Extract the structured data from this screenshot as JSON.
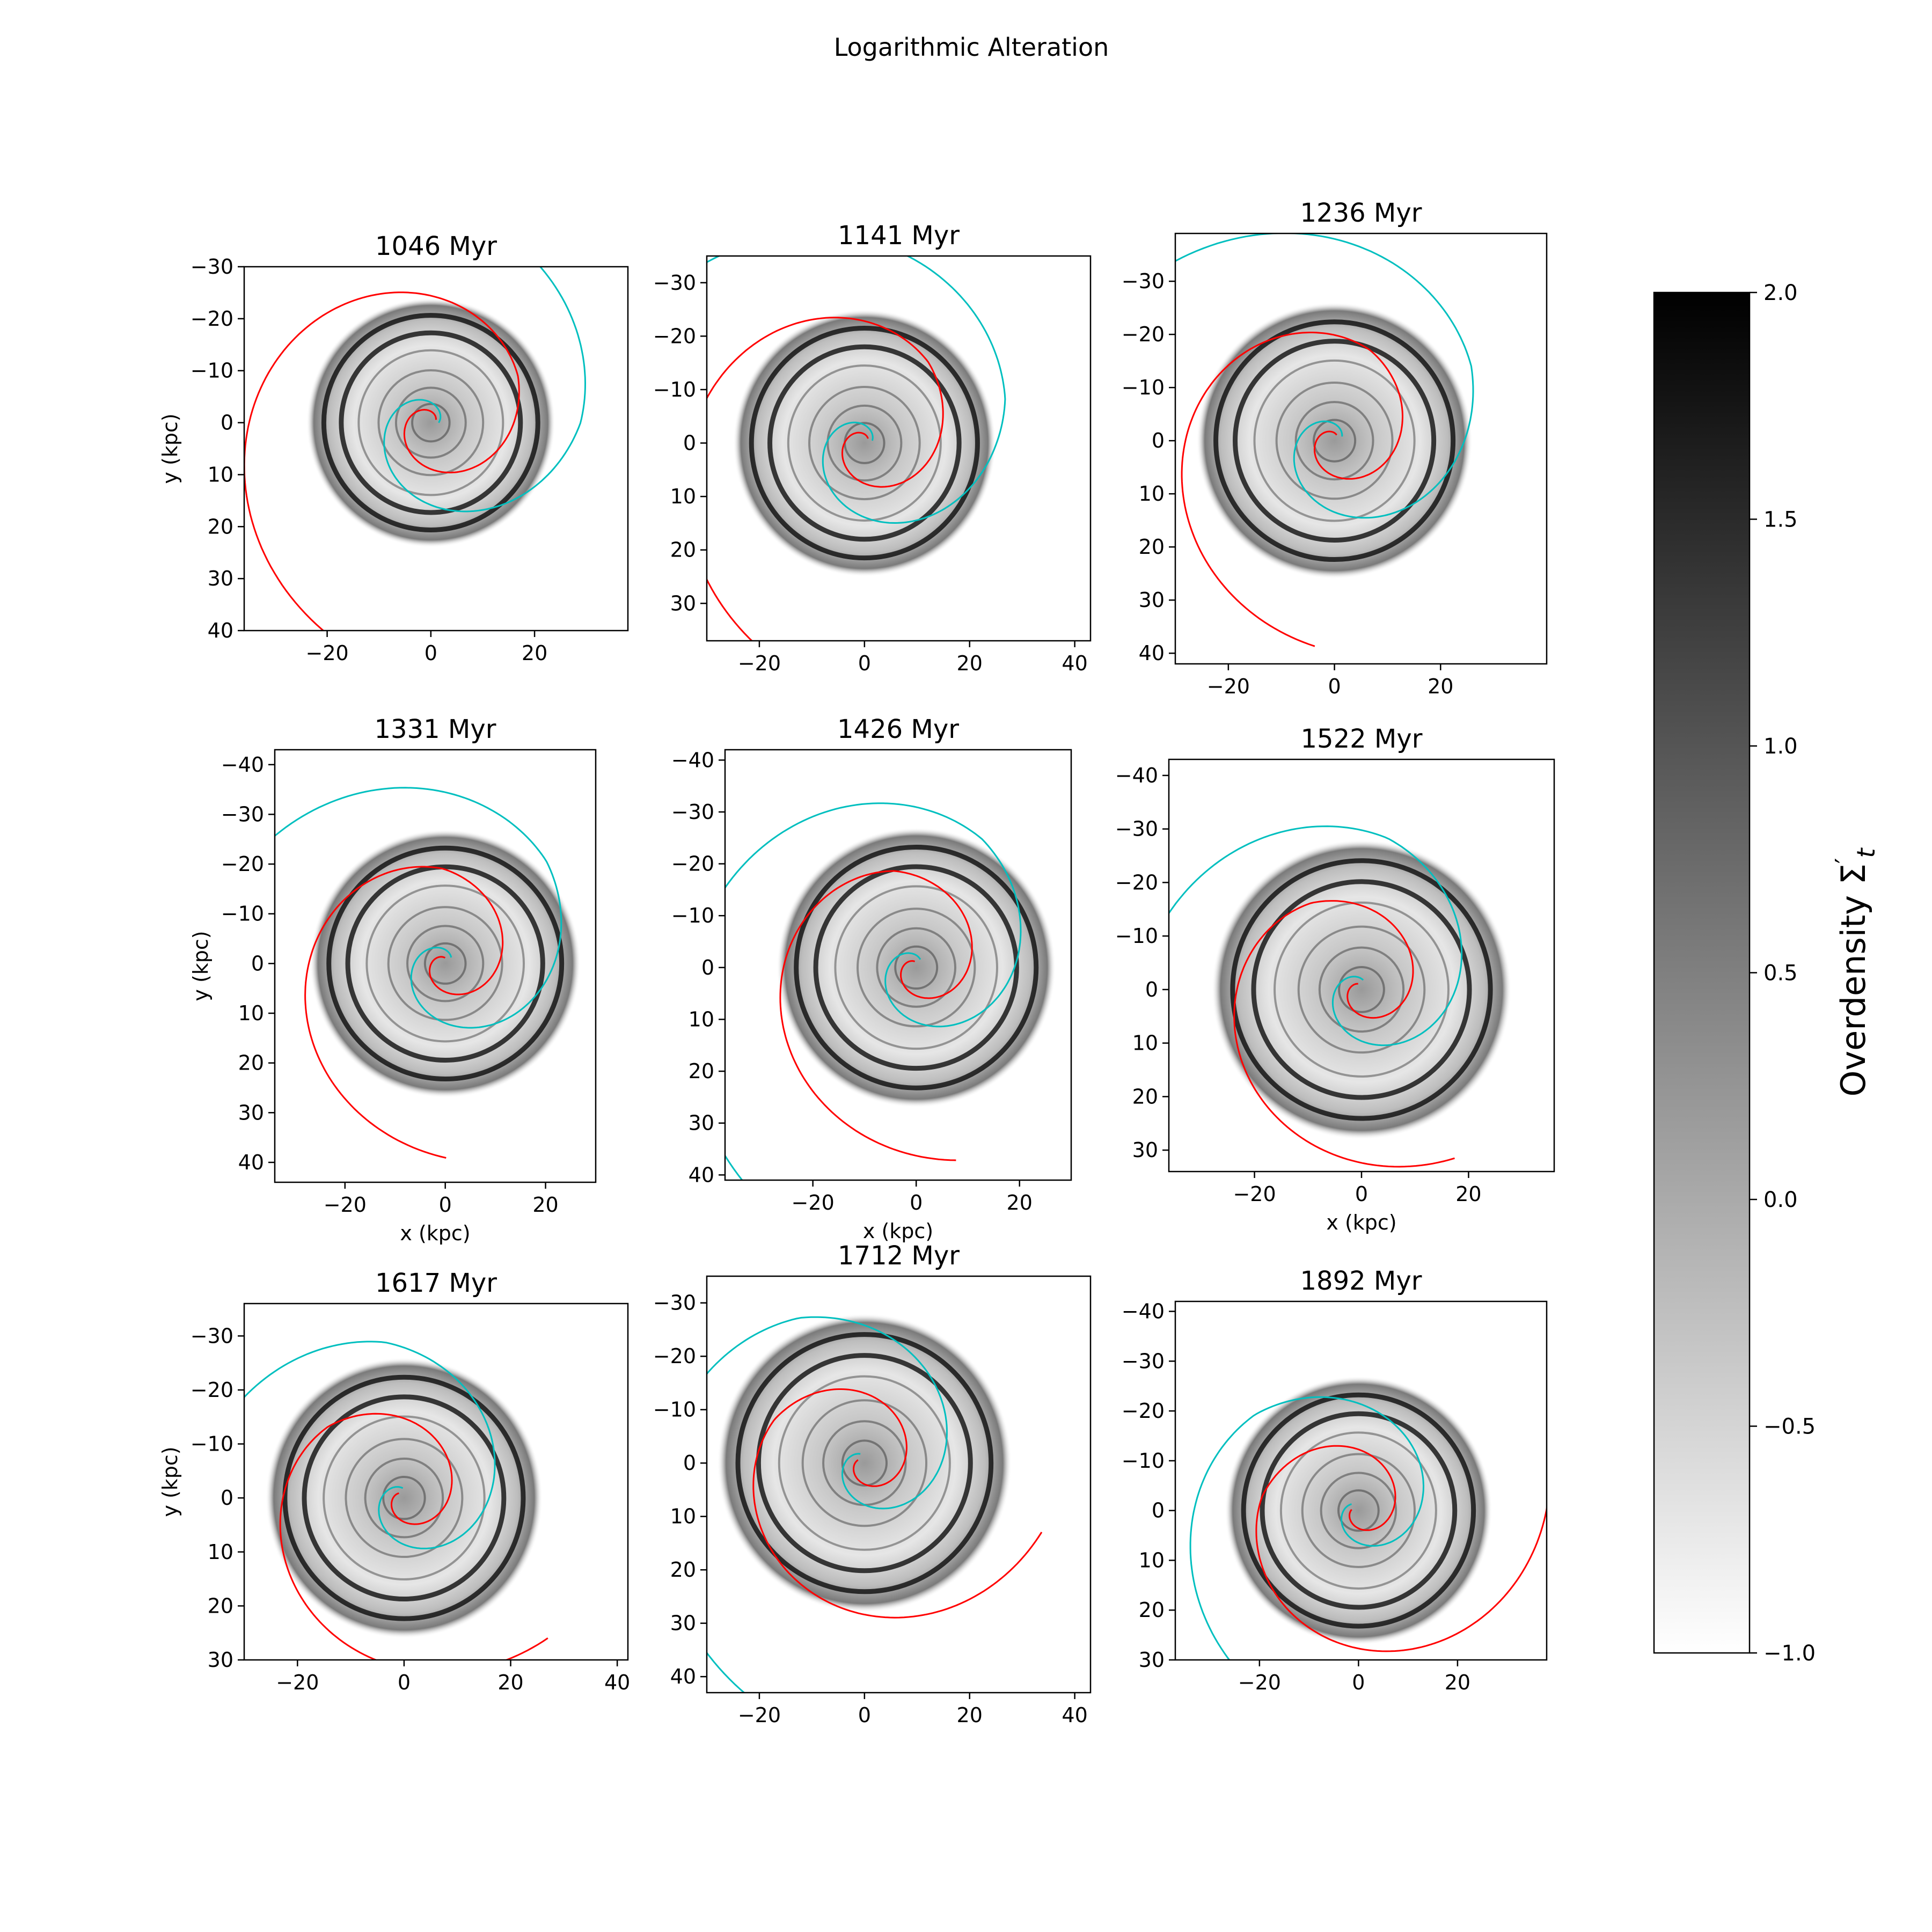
{
  "figure": {
    "title": "Logarithmic Alteration",
    "colorbar": {
      "label_main": "Overdensity Σ",
      "label_sub": "t",
      "label_prime": "′",
      "range": [
        -1.0,
        2.0
      ],
      "ticks": [
        "2.0",
        "1.5",
        "1.0",
        "0.5",
        "0.0",
        "−0.5",
        "−1.0"
      ],
      "colormap": "gray_r"
    },
    "colors": {
      "spiral_a": "#00BFBF",
      "spiral_b": "#FF0000",
      "density": "#000000"
    }
  },
  "chart_data": [
    {
      "type": "heatmap",
      "title": "1046 Myr",
      "xlabel": "",
      "ylabel": "y (kpc)",
      "xlim": [
        -36,
        38
      ],
      "ylim": [
        40,
        -30
      ],
      "xticks": [
        -20,
        0,
        20
      ],
      "yticks": [
        -30,
        -20,
        -10,
        0,
        10,
        20,
        30,
        40
      ],
      "disk_radius": 24,
      "spiral_a": {
        "a": 6.0,
        "b": 0.25,
        "th0": 0.0,
        "th1": 10.2
      },
      "spiral_b": {
        "a": 4.5,
        "b": 0.23,
        "th0": 0.5,
        "th1": 10.8
      }
    },
    {
      "type": "heatmap",
      "title": "1141 Myr",
      "xlabel": "",
      "ylabel": "",
      "xlim": [
        -30,
        43
      ],
      "ylim": [
        37,
        -35
      ],
      "xticks": [
        -20,
        0,
        20,
        40
      ],
      "yticks": [
        -30,
        -20,
        -10,
        0,
        10,
        20,
        30
      ],
      "disk_radius": 25,
      "spiral_a": {
        "a": 6.2,
        "b": 0.24,
        "th0": 0.3,
        "th1": 10.3
      },
      "spiral_b": {
        "a": 4.3,
        "b": 0.24,
        "th0": 0.9,
        "th1": 10.7
      }
    },
    {
      "type": "heatmap",
      "title": "1236 Myr",
      "xlabel": "",
      "ylabel": "",
      "xlim": [
        -30,
        40
      ],
      "ylim": [
        42,
        -39
      ],
      "xticks": [
        -20,
        0,
        20
      ],
      "yticks": [
        -30,
        -20,
        -10,
        0,
        10,
        20,
        30,
        40
      ],
      "disk_radius": 26,
      "spiral_a": {
        "a": 6.5,
        "b": 0.24,
        "th0": 0.5,
        "th1": 10.6
      },
      "spiral_b": {
        "a": 4.6,
        "b": 0.22,
        "th0": 1.2,
        "th1": 10.9
      }
    },
    {
      "type": "heatmap",
      "title": "1331 Myr",
      "xlabel": "x (kpc)",
      "ylabel": "y (kpc)",
      "xlim": [
        -34,
        30
      ],
      "ylim": [
        44,
        -43
      ],
      "xticks": [
        -20,
        0,
        20
      ],
      "yticks": [
        -40,
        -30,
        -20,
        -10,
        0,
        10,
        20,
        30,
        40
      ],
      "disk_radius": 27,
      "spiral_a": {
        "a": 6.8,
        "b": 0.23,
        "th0": 0.8,
        "th1": 10.5
      },
      "spiral_b": {
        "a": 4.5,
        "b": 0.23,
        "th0": 1.6,
        "th1": 11.0
      }
    },
    {
      "type": "heatmap",
      "title": "1426 Myr",
      "xlabel": "x (kpc)",
      "ylabel": "",
      "xlim": [
        -37,
        30
      ],
      "ylim": [
        41,
        -42
      ],
      "xticks": [
        -20,
        0,
        20
      ],
      "yticks": [
        -40,
        -30,
        -20,
        -10,
        0,
        10,
        20,
        30,
        40
      ],
      "disk_radius": 27,
      "spiral_a": {
        "a": 7.0,
        "b": 0.22,
        "th0": 1.1,
        "th1": 10.9
      },
      "spiral_b": {
        "a": 4.8,
        "b": 0.22,
        "th0": 1.8,
        "th1": 11.2
      }
    },
    {
      "type": "heatmap",
      "title": "1522 Myr",
      "xlabel": "x (kpc)",
      "ylabel": "",
      "xlim": [
        -36,
        36
      ],
      "ylim": [
        34,
        -43
      ],
      "xticks": [
        -20,
        0,
        20
      ],
      "yticks": [
        -40,
        -30,
        -20,
        -10,
        0,
        10,
        20,
        30
      ],
      "disk_radius": 28,
      "spiral_a": {
        "a": 7.2,
        "b": 0.22,
        "th0": 1.4,
        "th1": 11.0
      },
      "spiral_b": {
        "a": 5.0,
        "b": 0.21,
        "th0": 2.1,
        "th1": 11.5
      }
    },
    {
      "type": "heatmap",
      "title": "1617 Myr",
      "xlabel": "",
      "ylabel": "y (kpc)",
      "xlim": [
        -30,
        42
      ],
      "ylim": [
        30,
        -36
      ],
      "xticks": [
        -20,
        0,
        20,
        40
      ],
      "yticks": [
        -30,
        -20,
        -10,
        0,
        10,
        20,
        30
      ],
      "disk_radius": 26,
      "spiral_a": {
        "a": 7.3,
        "b": 0.22,
        "th0": 1.7,
        "th1": 11.3
      },
      "spiral_b": {
        "a": 5.2,
        "b": 0.21,
        "th0": 2.4,
        "th1": 11.8
      }
    },
    {
      "type": "heatmap",
      "title": "1712 Myr",
      "xlabel": "",
      "ylabel": "",
      "xlim": [
        -30,
        43
      ],
      "ylim": [
        43,
        -35
      ],
      "xticks": [
        -20,
        0,
        20,
        40
      ],
      "yticks": [
        -30,
        -20,
        -10,
        0,
        10,
        20,
        30,
        40
      ],
      "disk_radius": 28,
      "spiral_a": {
        "a": 7.5,
        "b": 0.22,
        "th0": 2.0,
        "th1": 11.6
      },
      "spiral_b": {
        "a": 5.4,
        "b": 0.2,
        "th0": 2.7,
        "th1": 12.2
      }
    },
    {
      "type": "heatmap",
      "title": "1892 Myr",
      "xlabel": "",
      "ylabel": "",
      "xlim": [
        -37,
        38
      ],
      "ylim": [
        30,
        -42
      ],
      "xticks": [
        -20,
        0,
        20
      ],
      "yticks": [
        -40,
        -30,
        -20,
        -10,
        0,
        10,
        20,
        30
      ],
      "disk_radius": 27,
      "spiral_a": {
        "a": 7.6,
        "b": 0.21,
        "th0": 2.4,
        "th1": 11.9
      },
      "spiral_b": {
        "a": 5.6,
        "b": 0.2,
        "th0": 3.0,
        "th1": 12.6
      }
    }
  ]
}
